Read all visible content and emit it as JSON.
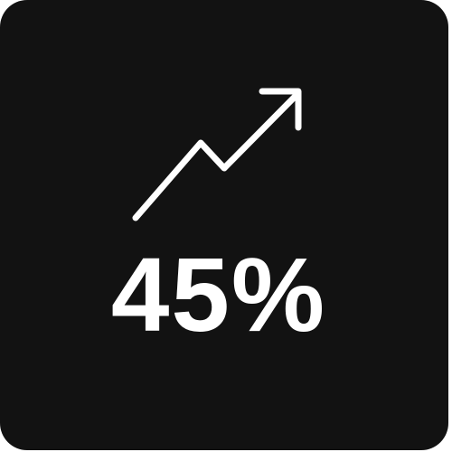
{
  "card": {
    "background": "#121212",
    "foreground": "#ffffff",
    "icon": "trend-up-arrow-icon",
    "value_text": "45%"
  }
}
